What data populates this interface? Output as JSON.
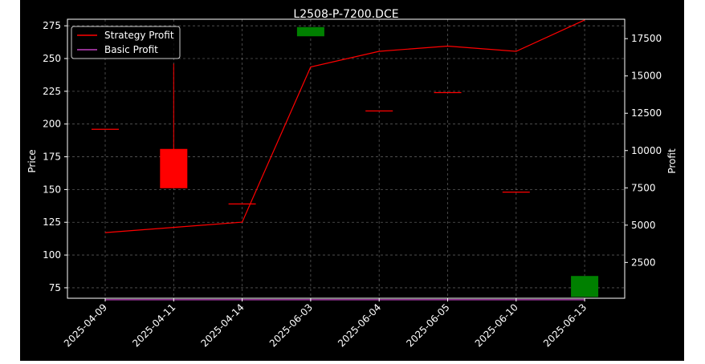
{
  "chart_data": {
    "type": "candlestick",
    "title": "L2508-P-7200.DCE",
    "ylabel_left": "Price",
    "ylabel_right": "Profit",
    "xlabel": "",
    "background_color": "#000000",
    "grid": true,
    "legend_position": "top-left",
    "categories": [
      "2025-04-09",
      "2025-04-11",
      "2025-04-14",
      "2025-06-03",
      "2025-06-04",
      "2025-06-05",
      "2025-06-10",
      "2025-06-13"
    ],
    "left_axis": {
      "ylim": [
        67,
        280
      ],
      "ticks": [
        75,
        100,
        125,
        150,
        175,
        200,
        225,
        250,
        275
      ],
      "tick_labels": [
        "75",
        "100",
        "125",
        "150",
        "175",
        "200",
        "225",
        "250",
        "275"
      ]
    },
    "right_axis": {
      "ylim": [
        100,
        18800
      ],
      "ticks": [
        2500,
        5000,
        7500,
        10000,
        12500,
        15000,
        17500
      ],
      "tick_labels": [
        "2500",
        "5000",
        "7500",
        "10000",
        "12500",
        "15000",
        "17500"
      ]
    },
    "candles": [
      {
        "date": "2025-04-09",
        "open": 196,
        "close": 196,
        "high": 196,
        "low": 196,
        "color": "#ff0000"
      },
      {
        "date": "2025-04-11",
        "open": 181,
        "close": 151,
        "high": 246,
        "low": 151,
        "color": "#ff0000"
      },
      {
        "date": "2025-04-14",
        "open": 139,
        "close": 139,
        "high": 139,
        "low": 139,
        "color": "#ff0000"
      },
      {
        "date": "2025-06-03",
        "open": 267,
        "close": 274,
        "high": 274,
        "low": 267,
        "color": "#008000"
      },
      {
        "date": "2025-06-04",
        "open": 210,
        "close": 210,
        "high": 210,
        "low": 210,
        "color": "#ff0000"
      },
      {
        "date": "2025-06-05",
        "open": 224,
        "close": 224,
        "high": 224,
        "low": 224,
        "color": "#ff0000"
      },
      {
        "date": "2025-06-10",
        "open": 148,
        "close": 148,
        "high": 148,
        "low": 148,
        "color": "#ff0000"
      },
      {
        "date": "2025-06-13",
        "open": 68,
        "close": 84,
        "high": 84,
        "low": 68,
        "color": "#008000"
      }
    ],
    "series": [
      {
        "name": "Strategy Profit",
        "color": "#ff0000",
        "axis": "right",
        "values": [
          4500,
          4850,
          5200,
          15600,
          16650,
          17000,
          16650,
          18750
        ]
      },
      {
        "name": "Basic Profit",
        "color": "#c040c0",
        "axis": "right",
        "values": [
          0,
          0,
          0,
          0,
          0,
          0,
          0,
          0
        ]
      }
    ]
  }
}
